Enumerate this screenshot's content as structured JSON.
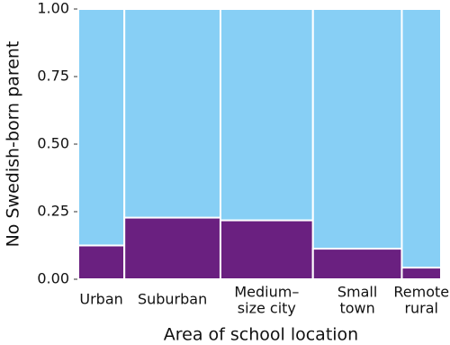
{
  "chart_data": {
    "type": "mosaic",
    "ylabel": "No Swedish-born parent",
    "xlabel": "Area of school location",
    "categories": [
      [
        "Urban"
      ],
      [
        "Suburban"
      ],
      [
        "Medium–",
        "size city"
      ],
      [
        "Small",
        "town"
      ],
      [
        "Remote",
        "rural"
      ]
    ],
    "widths": [
      0.127,
      0.265,
      0.255,
      0.245,
      0.108
    ],
    "values": [
      0.125,
      0.228,
      0.218,
      0.113,
      0.043
    ],
    "color": "#6a2080",
    "background_color": "#87cff5",
    "ylim": [
      0,
      1
    ],
    "yticks": [
      {
        "value": 0,
        "label": "0.00"
      },
      {
        "value": 0.25,
        "label": "0.25"
      },
      {
        "value": 0.5,
        "label": "0.50"
      },
      {
        "value": 0.75,
        "label": "0.75"
      },
      {
        "value": 1,
        "label": "1.00"
      }
    ]
  }
}
